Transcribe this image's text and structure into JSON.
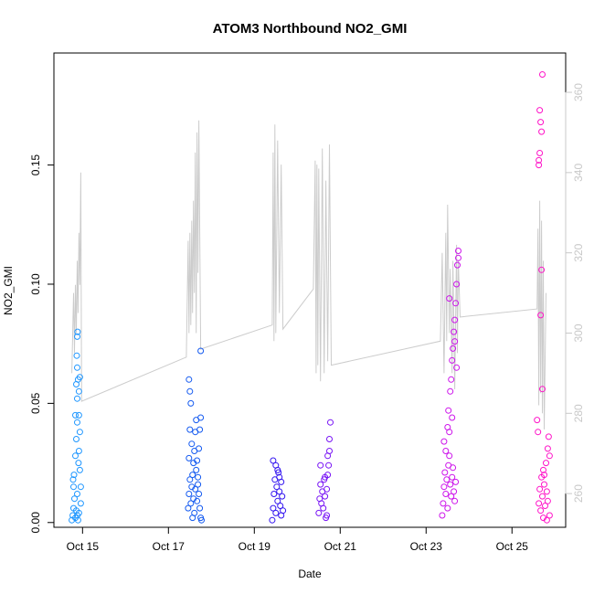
{
  "chart_data": {
    "type": "scatter",
    "title": "ATOM3 Northbound NO2_GMI",
    "xlabel": "Date",
    "ylabel": "NO2_GMI",
    "xlim": [
      "2017-10-14T08:00",
      "2017-10-26T06:00"
    ],
    "ylim": [
      -0.002,
      0.197
    ],
    "y2lim": [
      251.6,
      369.8
    ],
    "x_ticks": [
      {
        "date": "2017-10-15",
        "label": "Oct 15"
      },
      {
        "date": "2017-10-17",
        "label": "Oct 17"
      },
      {
        "date": "2017-10-19",
        "label": "Oct 19"
      },
      {
        "date": "2017-10-21",
        "label": "Oct 21"
      },
      {
        "date": "2017-10-23",
        "label": "Oct 23"
      },
      {
        "date": "2017-10-25",
        "label": "Oct 25"
      }
    ],
    "y_ticks": [
      {
        "value": 0.0,
        "label": "0.00"
      },
      {
        "value": 0.05,
        "label": "0.05"
      },
      {
        "value": 0.1,
        "label": "0.10"
      },
      {
        "value": 0.15,
        "label": "0.15"
      }
    ],
    "y2_ticks": [
      {
        "value": 260,
        "label": "260"
      },
      {
        "value": 280,
        "label": "280"
      },
      {
        "value": 300,
        "label": "300"
      },
      {
        "value": 320,
        "label": "320"
      },
      {
        "value": 340,
        "label": "340"
      },
      {
        "value": 360,
        "label": "360"
      }
    ],
    "grid": false,
    "legend": "none",
    "series": [
      {
        "color": "#1e96ff",
        "points": [
          [
            "2017-10-14T18:00",
            0.001
          ],
          [
            "2017-10-14T18:30",
            0.003
          ],
          [
            "2017-10-14T19:00",
            0.006
          ],
          [
            "2017-10-14T19:30",
            0.01
          ],
          [
            "2017-10-14T19:00",
            0.015
          ],
          [
            "2017-10-14T18:45",
            0.018
          ],
          [
            "2017-10-14T19:15",
            0.02
          ],
          [
            "2017-10-14T20:00",
            0.002
          ],
          [
            "2017-10-14T20:30",
            0.005
          ],
          [
            "2017-10-14T21:00",
            0.012
          ],
          [
            "2017-10-14T21:00",
            0.003
          ],
          [
            "2017-10-14T21:30",
            0.001
          ],
          [
            "2017-10-14T20:00",
            0.028
          ],
          [
            "2017-10-14T20:30",
            0.035
          ],
          [
            "2017-10-14T20:00",
            0.045
          ],
          [
            "2017-10-14T21:00",
            0.042
          ],
          [
            "2017-10-14T21:00",
            0.052
          ],
          [
            "2017-10-14T20:30",
            0.058
          ],
          [
            "2017-10-14T21:00",
            0.065
          ],
          [
            "2017-10-14T20:45",
            0.07
          ],
          [
            "2017-10-14T21:00",
            0.078
          ],
          [
            "2017-10-14T21:15",
            0.08
          ],
          [
            "2017-10-14T21:30",
            0.06
          ],
          [
            "2017-10-14T22:00",
            0.055
          ],
          [
            "2017-10-14T22:00",
            0.045
          ],
          [
            "2017-10-14T22:30",
            0.038
          ],
          [
            "2017-10-14T22:00",
            0.03
          ],
          [
            "2017-10-14T22:30",
            0.022
          ],
          [
            "2017-10-14T23:00",
            0.015
          ],
          [
            "2017-10-14T23:00",
            0.008
          ],
          [
            "2017-10-14T22:30",
            0.061
          ],
          [
            "2017-10-14T22:00",
            0.004
          ],
          [
            "2017-10-14T21:45",
            0.025
          ]
        ]
      },
      {
        "color": "#145af0",
        "points": [
          [
            "2017-10-17T11:00",
            0.006
          ],
          [
            "2017-10-17T11:30",
            0.012
          ],
          [
            "2017-10-17T12:00",
            0.018
          ],
          [
            "2017-10-17T12:30",
            0.008
          ],
          [
            "2017-10-17T13:00",
            0.015
          ],
          [
            "2017-10-17T13:30",
            0.02
          ],
          [
            "2017-10-17T14:00",
            0.01
          ],
          [
            "2017-10-17T14:30",
            0.004
          ],
          [
            "2017-10-17T15:00",
            0.014
          ],
          [
            "2017-10-17T15:30",
            0.022
          ],
          [
            "2017-10-17T16:00",
            0.009
          ],
          [
            "2017-10-17T16:30",
            0.016
          ],
          [
            "2017-10-17T17:00",
            0.012
          ],
          [
            "2017-10-17T17:30",
            0.006
          ],
          [
            "2017-10-17T18:00",
            0.002
          ],
          [
            "2017-10-17T11:30",
            0.027
          ],
          [
            "2017-10-17T12:00",
            0.039
          ],
          [
            "2017-10-17T12:00",
            0.055
          ],
          [
            "2017-10-17T11:30",
            0.06
          ],
          [
            "2017-10-17T12:30",
            0.05
          ],
          [
            "2017-10-17T13:00",
            0.033
          ],
          [
            "2017-10-17T14:00",
            0.025
          ],
          [
            "2017-10-17T14:30",
            0.03
          ],
          [
            "2017-10-17T15:00",
            0.038
          ],
          [
            "2017-10-17T15:30",
            0.043
          ],
          [
            "2017-10-17T16:00",
            0.026
          ],
          [
            "2017-10-17T18:00",
            0.044
          ],
          [
            "2017-10-17T18:00",
            0.072
          ],
          [
            "2017-10-17T17:30",
            0.039
          ],
          [
            "2017-10-17T13:30",
            0.002
          ],
          [
            "2017-10-17T18:30",
            0.001
          ],
          [
            "2017-10-17T16:30",
            0.019
          ],
          [
            "2017-10-17T17:00",
            0.031
          ]
        ]
      },
      {
        "color": "#3214f0",
        "points": [
          [
            "2017-10-19T10:00",
            0.001
          ],
          [
            "2017-10-19T10:30",
            0.006
          ],
          [
            "2017-10-19T11:00",
            0.012
          ],
          [
            "2017-10-19T11:30",
            0.018
          ],
          [
            "2017-10-19T12:00",
            0.024
          ],
          [
            "2017-10-19T12:30",
            0.015
          ],
          [
            "2017-10-19T13:00",
            0.009
          ],
          [
            "2017-10-19T13:30",
            0.021
          ],
          [
            "2017-10-19T14:00",
            0.013
          ],
          [
            "2017-10-19T14:30",
            0.007
          ],
          [
            "2017-10-19T15:00",
            0.017
          ],
          [
            "2017-10-19T15:30",
            0.011
          ],
          [
            "2017-10-19T16:00",
            0.005
          ],
          [
            "2017-10-19T10:30",
            0.026
          ],
          [
            "2017-10-19T12:00",
            0.004
          ],
          [
            "2017-10-19T13:00",
            0.022
          ],
          [
            "2017-10-19T14:00",
            0.019
          ],
          [
            "2017-10-19T15:00",
            0.003
          ]
        ]
      },
      {
        "color": "#7814f5",
        "points": [
          [
            "2017-10-20T12:00",
            0.004
          ],
          [
            "2017-10-20T12:30",
            0.01
          ],
          [
            "2017-10-20T13:00",
            0.016
          ],
          [
            "2017-10-20T13:30",
            0.008
          ],
          [
            "2017-10-20T14:00",
            0.013
          ],
          [
            "2017-10-20T14:30",
            0.006
          ],
          [
            "2017-10-20T15:00",
            0.018
          ],
          [
            "2017-10-20T15:30",
            0.011
          ],
          [
            "2017-10-20T16:00",
            0.002
          ],
          [
            "2017-10-20T16:30",
            0.014
          ],
          [
            "2017-10-20T17:00",
            0.02
          ],
          [
            "2017-10-20T17:30",
            0.024
          ],
          [
            "2017-10-20T18:00",
            0.03
          ],
          [
            "2017-10-20T18:00",
            0.035
          ],
          [
            "2017-10-20T18:30",
            0.042
          ],
          [
            "2017-10-20T17:00",
            0.028
          ],
          [
            "2017-10-20T13:00",
            0.024
          ],
          [
            "2017-10-20T15:30",
            0.019
          ],
          [
            "2017-10-20T16:30",
            0.003
          ]
        ]
      },
      {
        "color": "#cd14eb",
        "points": [
          [
            "2017-10-23T09:00",
            0.003
          ],
          [
            "2017-10-23T09:30",
            0.008
          ],
          [
            "2017-10-23T10:00",
            0.015
          ],
          [
            "2017-10-23T10:30",
            0.021
          ],
          [
            "2017-10-23T11:00",
            0.012
          ],
          [
            "2017-10-23T11:30",
            0.018
          ],
          [
            "2017-10-23T12:00",
            0.006
          ],
          [
            "2017-10-23T12:30",
            0.024
          ],
          [
            "2017-10-23T13:00",
            0.028
          ],
          [
            "2017-10-23T13:30",
            0.016
          ],
          [
            "2017-10-23T14:00",
            0.011
          ],
          [
            "2017-10-23T14:30",
            0.019
          ],
          [
            "2017-10-23T15:00",
            0.023
          ],
          [
            "2017-10-23T15:30",
            0.013
          ],
          [
            "2017-10-23T16:00",
            0.009
          ],
          [
            "2017-10-23T16:30",
            0.017
          ],
          [
            "2017-10-23T10:00",
            0.034
          ],
          [
            "2017-10-23T11:00",
            0.03
          ],
          [
            "2017-10-23T12:00",
            0.04
          ],
          [
            "2017-10-23T12:30",
            0.047
          ],
          [
            "2017-10-23T13:00",
            0.038
          ],
          [
            "2017-10-23T13:30",
            0.055
          ],
          [
            "2017-10-23T14:00",
            0.06
          ],
          [
            "2017-10-23T14:30",
            0.068
          ],
          [
            "2017-10-23T15:00",
            0.073
          ],
          [
            "2017-10-23T15:30",
            0.08
          ],
          [
            "2017-10-23T16:00",
            0.085
          ],
          [
            "2017-10-23T16:30",
            0.092
          ],
          [
            "2017-10-23T17:00",
            0.1
          ],
          [
            "2017-10-23T17:30",
            0.108
          ],
          [
            "2017-10-23T18:00",
            0.114
          ],
          [
            "2017-10-23T18:00",
            0.111
          ],
          [
            "2017-10-23T16:00",
            0.076
          ],
          [
            "2017-10-23T17:00",
            0.065
          ],
          [
            "2017-10-23T13:00",
            0.094
          ],
          [
            "2017-10-23T14:30",
            0.044
          ]
        ]
      },
      {
        "color": "#ff14c8",
        "points": [
          [
            "2017-10-25T15:00",
            0.008
          ],
          [
            "2017-10-25T15:30",
            0.014
          ],
          [
            "2017-10-25T16:00",
            0.005
          ],
          [
            "2017-10-25T16:30",
            0.019
          ],
          [
            "2017-10-25T17:00",
            0.011
          ],
          [
            "2017-10-25T17:30",
            0.022
          ],
          [
            "2017-10-25T18:00",
            0.016
          ],
          [
            "2017-10-25T18:30",
            0.007
          ],
          [
            "2017-10-25T19:00",
            0.025
          ],
          [
            "2017-10-25T19:30",
            0.013
          ],
          [
            "2017-10-25T20:00",
            0.031
          ],
          [
            "2017-10-25T20:30",
            0.036
          ],
          [
            "2017-10-25T21:00",
            0.003
          ],
          [
            "2017-10-25T21:00",
            0.028
          ],
          [
            "2017-10-25T14:30",
            0.038
          ],
          [
            "2017-10-25T14:00",
            0.043
          ],
          [
            "2017-10-25T17:00",
            0.056
          ],
          [
            "2017-10-25T16:00",
            0.087
          ],
          [
            "2017-10-25T16:30",
            0.106
          ],
          [
            "2017-10-25T15:00",
            0.15
          ],
          [
            "2017-10-25T15:30",
            0.155
          ],
          [
            "2017-10-25T16:30",
            0.164
          ],
          [
            "2017-10-25T16:00",
            0.168
          ],
          [
            "2017-10-25T15:30",
            0.173
          ],
          [
            "2017-10-25T17:00",
            0.188
          ],
          [
            "2017-10-25T18:00",
            0.02
          ],
          [
            "2017-10-25T19:30",
            0.001
          ],
          [
            "2017-10-25T15:00",
            0.152
          ],
          [
            "2017-10-25T20:00",
            0.009
          ],
          [
            "2017-10-25T17:30",
            0.002
          ]
        ]
      }
    ],
    "line_series": {
      "axis": "right",
      "color": "#cccccc",
      "points": [
        [
          "2017-10-14T18:00",
          290
        ],
        [
          "2017-10-14T19:00",
          310
        ],
        [
          "2017-10-14T19:30",
          295
        ],
        [
          "2017-10-14T20:00",
          312
        ],
        [
          "2017-10-14T20:30",
          300
        ],
        [
          "2017-10-14T21:00",
          318
        ],
        [
          "2017-10-14T21:30",
          305
        ],
        [
          "2017-10-14T22:00",
          325
        ],
        [
          "2017-10-14T22:30",
          312
        ],
        [
          "2017-10-14T23:00",
          340
        ],
        [
          "2017-10-14T23:30",
          283
        ],
        [
          "2017-10-17T10:00",
          294
        ],
        [
          "2017-10-17T11:00",
          323
        ],
        [
          "2017-10-17T11:30",
          300
        ],
        [
          "2017-10-17T12:00",
          325
        ],
        [
          "2017-10-17T12:30",
          302
        ],
        [
          "2017-10-17T13:00",
          328
        ],
        [
          "2017-10-17T13:30",
          305
        ],
        [
          "2017-10-17T14:00",
          333
        ],
        [
          "2017-10-17T14:30",
          310
        ],
        [
          "2017-10-17T15:00",
          345
        ],
        [
          "2017-10-17T15:30",
          300
        ],
        [
          "2017-10-17T16:00",
          350
        ],
        [
          "2017-10-17T16:30",
          315
        ],
        [
          "2017-10-17T17:00",
          353
        ],
        [
          "2017-10-17T18:00",
          296
        ],
        [
          "2017-10-19T10:00",
          302
        ],
        [
          "2017-10-19T10:30",
          345
        ],
        [
          "2017-10-19T11:00",
          298
        ],
        [
          "2017-10-19T11:30",
          352
        ],
        [
          "2017-10-19T12:00",
          300
        ],
        [
          "2017-10-19T13:00",
          348
        ],
        [
          "2017-10-19T14:00",
          305
        ],
        [
          "2017-10-19T15:00",
          342
        ],
        [
          "2017-10-19T16:00",
          301
        ],
        [
          "2017-10-20T09:00",
          311
        ],
        [
          "2017-10-20T10:00",
          343
        ],
        [
          "2017-10-20T10:30",
          290
        ],
        [
          "2017-10-20T11:00",
          342
        ],
        [
          "2017-10-20T11:30",
          292
        ],
        [
          "2017-10-20T12:00",
          341
        ],
        [
          "2017-10-20T13:00",
          288
        ],
        [
          "2017-10-20T14:00",
          346
        ],
        [
          "2017-10-20T15:00",
          290
        ],
        [
          "2017-10-20T16:00",
          338
        ],
        [
          "2017-10-20T17:00",
          293
        ],
        [
          "2017-10-20T18:00",
          347
        ],
        [
          "2017-10-20T19:00",
          292
        ],
        [
          "2017-10-23T08:00",
          298
        ],
        [
          "2017-10-23T09:00",
          320
        ],
        [
          "2017-10-23T10:00",
          290
        ],
        [
          "2017-10-23T11:00",
          325
        ],
        [
          "2017-10-23T11:30",
          298
        ],
        [
          "2017-10-23T12:00",
          332
        ],
        [
          "2017-10-23T13:00",
          300
        ],
        [
          "2017-10-23T13:30",
          316
        ],
        [
          "2017-10-23T14:30",
          290
        ],
        [
          "2017-10-23T15:00",
          318
        ],
        [
          "2017-10-23T16:00",
          286
        ],
        [
          "2017-10-23T17:00",
          322
        ],
        [
          "2017-10-23T17:30",
          295
        ],
        [
          "2017-10-23T18:00",
          318
        ],
        [
          "2017-10-23T19:00",
          304
        ],
        [
          "2017-10-25T14:00",
          306
        ],
        [
          "2017-10-25T14:30",
          326
        ],
        [
          "2017-10-25T15:00",
          282
        ],
        [
          "2017-10-25T15:30",
          333
        ],
        [
          "2017-10-25T16:00",
          285
        ],
        [
          "2017-10-25T16:30",
          328
        ],
        [
          "2017-10-25T17:00",
          280
        ],
        [
          "2017-10-25T17:30",
          318
        ],
        [
          "2017-10-25T18:00",
          276
        ],
        [
          "2017-10-25T19:00",
          310
        ]
      ]
    }
  }
}
